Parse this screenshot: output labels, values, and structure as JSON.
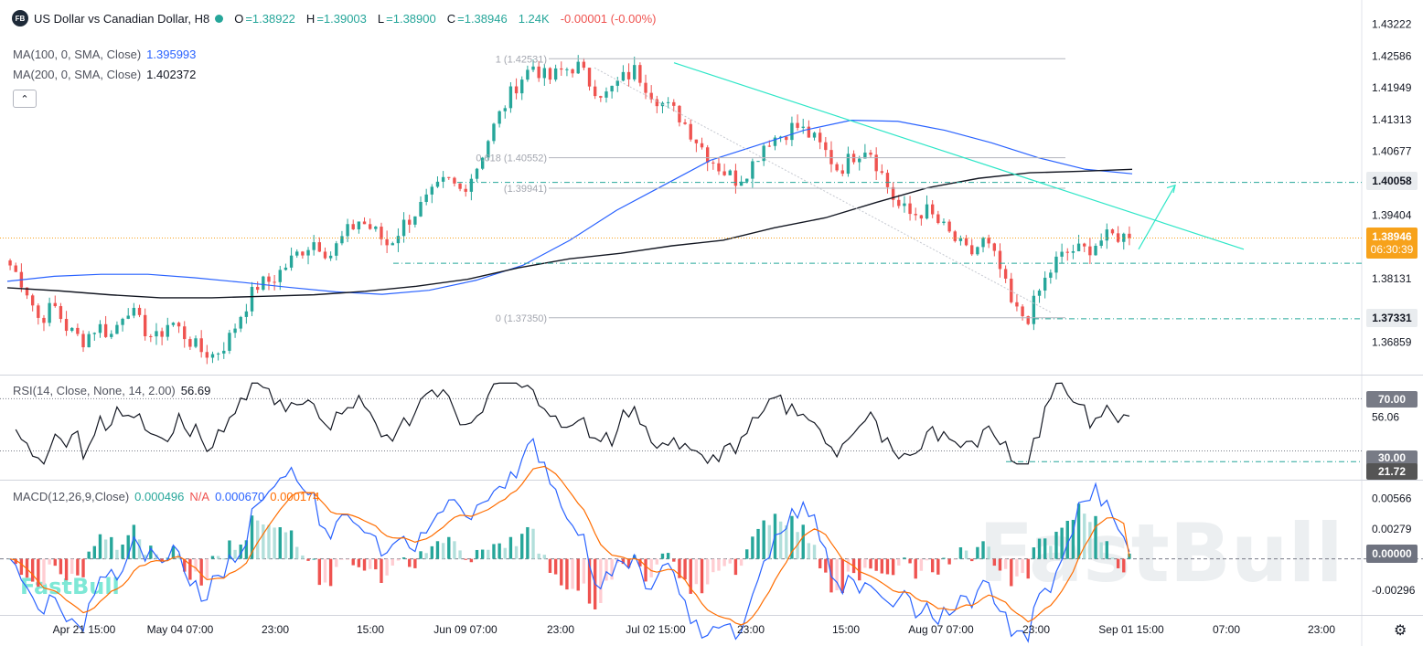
{
  "header": {
    "logo": "FB",
    "symbol_title": "US Dollar vs Canadian Dollar, H8",
    "open_label": "O",
    "open": "=1.38922",
    "high_label": "H",
    "high": "=1.39003",
    "low_label": "L",
    "low": "=1.38900",
    "close_label": "C",
    "close": "=1.38946",
    "volume": "1.24K",
    "change": "-0.00001 (-0.00%)"
  },
  "indicators": {
    "ma100_label": "MA(100, 0, SMA, Close)",
    "ma100_value": "1.395993",
    "ma200_label": "MA(200, 0, SMA, Close)",
    "ma200_value": "1.402372",
    "rsi_label": "RSI(14, Close, None, 14, 2.00)",
    "rsi_value": "56.69",
    "macd_label": "MACD(12,26,9,Close)",
    "macd_hist": "0.000496",
    "macd_na": "N/A",
    "macd_line": "0.000670",
    "macd_signal": "0.000174"
  },
  "price_axis": {
    "ticks": [
      "1.43222",
      "1.42586",
      "1.41949",
      "1.41313",
      "1.40677",
      "1.39404",
      "1.38131",
      "1.36859"
    ],
    "tag_level": "1.40058",
    "tag_current": "1.38946",
    "tag_countdown": "06:30:39",
    "tag_support": "1.37331"
  },
  "rsi_axis": {
    "ticks": [
      "56.06"
    ],
    "tag_70": "70.00",
    "tag_30": "30.00",
    "tag_low": "21.72"
  },
  "macd_axis": {
    "ticks": [
      "0.00566",
      "0.00279",
      "-0.00296"
    ],
    "tag_zero": "0.00000"
  },
  "time_axis": [
    "Apr 21 15:00",
    "May 04 07:00",
    "23:00",
    "15:00",
    "Jun 09 07:00",
    "23:00",
    "Jul 02 15:00",
    "23:00",
    "15:00",
    "Aug 07 07:00",
    "23:00",
    "Sep 01 15:00",
    "07:00",
    "23:00"
  ],
  "fib_labels": {
    "f100": "1 (1.42531)",
    "f618": "0.618 (1.40552)",
    "f500": "(1.39941)",
    "f0": "0 (1.37350)"
  },
  "watermark": "FastBull",
  "icons": {
    "settings": "gear-icon",
    "collapse": "chevron-up-icon"
  },
  "colors": {
    "up": "#26a69a",
    "down": "#ef5350",
    "ma100": "#2962ff",
    "ma200": "#131722",
    "trend": "#2ee6c7",
    "macd_signal": "#ff6d00"
  },
  "chart_data": {
    "type": "candlestick",
    "symbol": "USDCAD",
    "timeframe": "H8",
    "ylim": [
      1.3625,
      1.4345
    ],
    "last_ohlc": {
      "open": 1.38922,
      "high": 1.39003,
      "low": 1.389,
      "close": 1.38946
    },
    "close_path": [
      1.384,
      1.38,
      1.373,
      1.376,
      1.371,
      1.369,
      1.372,
      1.37,
      1.376,
      1.372,
      1.369,
      1.373,
      1.37,
      1.367,
      1.366,
      1.369,
      1.375,
      1.38,
      1.381,
      1.384,
      1.387,
      1.389,
      1.386,
      1.39,
      1.393,
      1.391,
      1.388,
      1.392,
      1.395,
      1.398,
      1.401,
      1.399,
      1.403,
      1.41,
      1.416,
      1.421,
      1.424,
      1.421,
      1.423,
      1.424,
      1.42,
      1.418,
      1.421,
      1.423,
      1.419,
      1.416,
      1.414,
      1.41,
      1.406,
      1.403,
      1.401,
      1.404,
      1.409,
      1.41,
      1.412,
      1.41,
      1.407,
      1.403,
      1.406,
      1.408,
      1.402,
      1.396,
      1.394,
      1.395,
      1.392,
      1.389,
      1.386,
      1.389,
      1.384,
      1.375,
      1.3735,
      1.38,
      1.385,
      1.387,
      1.387,
      1.389,
      1.39,
      1.3895
    ],
    "ma100": [
      1.3808,
      1.3818,
      1.3822,
      1.3822,
      1.3815,
      1.3806,
      1.3796,
      1.3787,
      1.3782,
      1.379,
      1.381,
      1.384,
      1.389,
      1.395,
      1.4,
      1.405,
      1.408,
      1.411,
      1.413,
      1.4128,
      1.411,
      1.4085,
      1.4055,
      1.4032,
      1.4023
    ],
    "ma200": [
      1.3795,
      1.3789,
      1.3781,
      1.3775,
      1.3775,
      1.3778,
      1.3781,
      1.3788,
      1.3798,
      1.3812,
      1.3835,
      1.3853,
      1.3864,
      1.3879,
      1.389,
      1.3915,
      1.3935,
      1.3966,
      1.3995,
      1.4014,
      1.4025,
      1.4028,
      1.4032
    ],
    "fibonacci": [
      {
        "level": 1,
        "price": 1.42531
      },
      {
        "level": 0.618,
        "price": 1.40552
      },
      {
        "level": 0.5,
        "price": 1.39941
      },
      {
        "level": 0,
        "price": 1.3735
      }
    ],
    "horizontal_levels": [
      1.40058,
      1.38946,
      1.37331
    ],
    "rsi": {
      "ylim": [
        10,
        85
      ],
      "levels": [
        70,
        30
      ],
      "last": 56.69,
      "low_mark": 21.72
    },
    "macd": {
      "ylim": [
        -0.005,
        0.007
      ],
      "macd": 0.00067,
      "signal": 0.000174,
      "hist": 0.000496
    },
    "grid": false,
    "legend": "top-left"
  }
}
